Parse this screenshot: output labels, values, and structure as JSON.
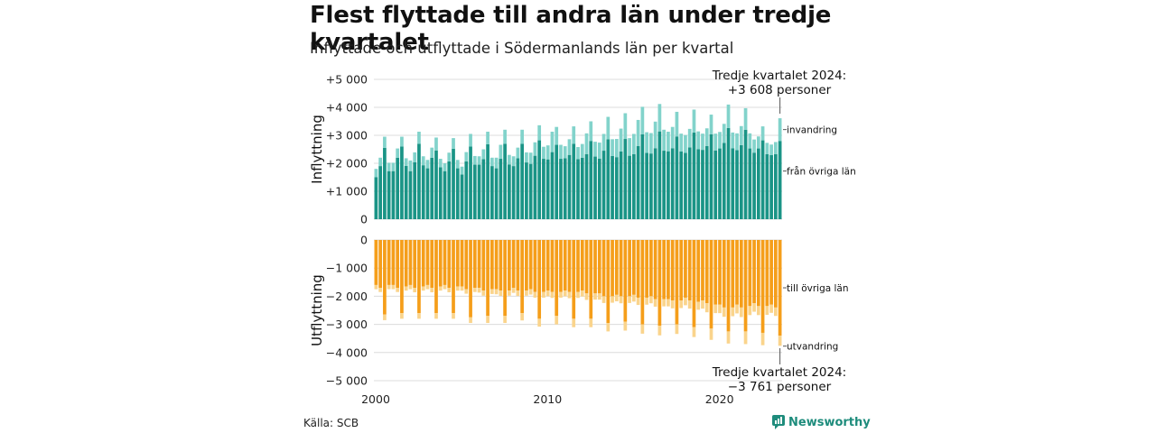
{
  "title": "Flest flyttade till andra län under tredje kvartalet",
  "subtitle": "Inflyttade och utflyttade i Södermanlands län per kvartal",
  "source": "Källa: SCB",
  "brand": "Newsworthy",
  "colors": {
    "in_lan": "#1a9486",
    "in_invandring": "#82d3cb",
    "ut_lan": "#f59e1a",
    "ut_utvandring": "#fad48c",
    "grid": "#dcdcdc",
    "brand": "#1e8c7c"
  },
  "chart_data": [
    {
      "type": "bar",
      "stacked": true,
      "title": "Inflyttning",
      "ylabel": "Inflyttning",
      "ylim": [
        0,
        5000
      ],
      "yticks": [
        0,
        1000,
        2000,
        3000,
        4000,
        5000
      ],
      "ytick_labels": [
        "0",
        "+1 000",
        "+2 000",
        "+3 000",
        "+4 000",
        "+5 000"
      ],
      "x_start": "2000-Q1",
      "xtick_labels": [
        "2000",
        "2010",
        "2020"
      ],
      "series": [
        {
          "name": "från övriga län",
          "values": [
            1500,
            1900,
            2550,
            1720,
            1720,
            2200,
            2600,
            1910,
            1720,
            2040,
            2700,
            1930,
            1820,
            2200,
            2460,
            1860,
            1720,
            2070,
            2520,
            1820,
            1600,
            2070,
            2600,
            1950,
            1950,
            2150,
            2680,
            1900,
            1820,
            2160,
            2700,
            1960,
            1900,
            2180,
            2700,
            2030,
            1980,
            2270,
            2820,
            2160,
            2140,
            2400,
            2660,
            2160,
            2180,
            2300,
            2700,
            2150,
            2200,
            2330,
            2800,
            2240,
            2170,
            2450,
            2860,
            2260,
            2220,
            2420,
            2870,
            2270,
            2330,
            2620,
            3040,
            2370,
            2350,
            2540,
            3140,
            2450,
            2430,
            2540,
            2960,
            2420,
            2370,
            2570,
            3100,
            2500,
            2480,
            2620,
            3040,
            2460,
            2530,
            2730,
            3260,
            2540,
            2470,
            2650,
            3200,
            2530,
            2380,
            2530,
            2820,
            2330,
            2290,
            2330,
            2800
          ]
        },
        {
          "name": "invandring",
          "values": [
            300,
            300,
            400,
            300,
            300,
            330,
            350,
            270,
            380,
            350,
            430,
            320,
            300,
            360,
            460,
            300,
            280,
            310,
            380,
            300,
            280,
            330,
            450,
            310,
            300,
            350,
            450,
            300,
            380,
            500,
            500,
            340,
            350,
            380,
            500,
            360,
            400,
            480,
            540,
            430,
            500,
            730,
            640,
            500,
            430,
            560,
            620,
            430,
            490,
            740,
            700,
            530,
            570,
            600,
            800,
            600,
            650,
            820,
            920,
            630,
            720,
            930,
            980,
            740,
            730,
            950,
            980,
            750,
            700,
            760,
            880,
            640,
            640,
            660,
            820,
            640,
            580,
            630,
            700,
            600,
            590,
            680,
            840,
            560,
            600,
            680,
            770,
            540,
            470,
            430,
            500,
            400,
            380,
            430,
            810
          ]
        }
      ],
      "annotation": "Tredje kvartalet 2024: +3 608 personer"
    },
    {
      "type": "bar",
      "stacked": true,
      "title": "Utflyttning",
      "ylabel": "Utflyttning",
      "ylim": [
        -5000,
        0
      ],
      "yticks": [
        0,
        -1000,
        -2000,
        -3000,
        -4000,
        -5000
      ],
      "ytick_labels": [
        "0",
        "−1 000",
        "−2 000",
        "−3 000",
        "−4 000",
        "−5 000"
      ],
      "series": [
        {
          "name": "till övriga län",
          "values": [
            -1600,
            -1700,
            -2650,
            -1600,
            -1600,
            -1700,
            -2600,
            -1650,
            -1600,
            -1700,
            -2600,
            -1650,
            -1600,
            -1700,
            -2600,
            -1650,
            -1600,
            -1700,
            -2600,
            -1650,
            -1650,
            -1750,
            -2750,
            -1700,
            -1700,
            -1800,
            -2700,
            -1750,
            -1750,
            -1800,
            -2700,
            -1800,
            -1700,
            -1800,
            -2600,
            -1800,
            -1750,
            -1850,
            -2800,
            -1850,
            -1800,
            -1850,
            -2700,
            -1850,
            -1800,
            -1850,
            -2800,
            -1850,
            -1800,
            -1900,
            -2800,
            -1900,
            -1900,
            -2000,
            -2950,
            -2000,
            -1950,
            -2000,
            -2900,
            -2000,
            -1950,
            -2050,
            -3000,
            -2050,
            -2000,
            -2100,
            -3050,
            -2100,
            -2100,
            -2150,
            -3000,
            -2150,
            -2050,
            -2150,
            -3100,
            -2200,
            -2150,
            -2250,
            -3150,
            -2300,
            -2300,
            -2400,
            -3250,
            -2400,
            -2300,
            -2400,
            -3250,
            -2350,
            -2250,
            -2350,
            -3300,
            -2350,
            -2300,
            -2400,
            -3400
          ]
        },
        {
          "name": "utvandring",
          "values": [
            -150,
            -150,
            -200,
            -150,
            -150,
            -150,
            -200,
            -150,
            -150,
            -160,
            -200,
            -150,
            -150,
            -160,
            -200,
            -150,
            -150,
            -160,
            -200,
            -150,
            -150,
            -160,
            -200,
            -150,
            -170,
            -180,
            -250,
            -170,
            -180,
            -190,
            -250,
            -180,
            -180,
            -190,
            -260,
            -180,
            -190,
            -200,
            -280,
            -200,
            -200,
            -210,
            -300,
            -200,
            -200,
            -220,
            -300,
            -210,
            -210,
            -230,
            -300,
            -220,
            -220,
            -240,
            -300,
            -230,
            -230,
            -250,
            -320,
            -240,
            -240,
            -260,
            -330,
            -250,
            -250,
            -270,
            -340,
            -260,
            -260,
            -280,
            -340,
            -270,
            -270,
            -290,
            -350,
            -280,
            -290,
            -320,
            -400,
            -300,
            -300,
            -330,
            -430,
            -310,
            -310,
            -340,
            -450,
            -320,
            -300,
            -320,
            -440,
            -310,
            -290,
            -300,
            -361
          ]
        }
      ],
      "annotation": "Tredje kvartalet 2024: −3 761 personer"
    }
  ]
}
